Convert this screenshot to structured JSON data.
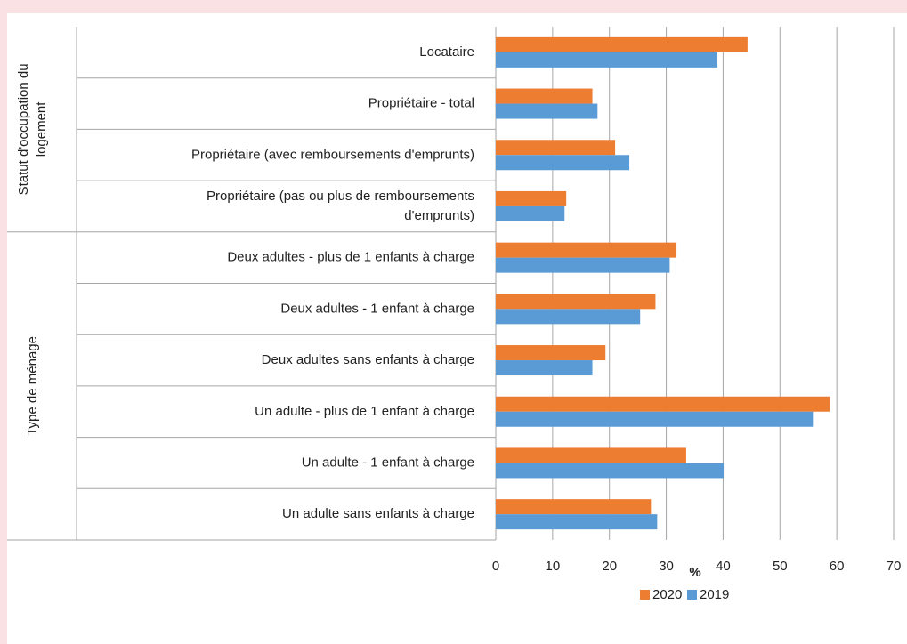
{
  "chart_data": {
    "type": "bar",
    "orientation": "horizontal",
    "groups": [
      {
        "label": "Statut d'occupation du\nlogement",
        "size": 4
      },
      {
        "label": "Type de ménage",
        "size": 6
      }
    ],
    "categories": [
      "Locataire",
      "Propriétaire - total",
      "Propriétaire (avec remboursements d'emprunts)",
      "Propriétaire (pas ou plus de remboursements\nd'emprunts)",
      "Deux adultes - plus de 1 enfants à charge",
      "Deux adultes - 1 enfant à charge",
      "Deux adultes sans enfants à charge",
      "Un adulte - plus de 1 enfant à charge",
      "Un adulte - 1 enfant à charge",
      "Un adulte sans enfants à charge"
    ],
    "series": [
      {
        "name": "2020",
        "color": "#ed7d31",
        "values": [
          44.3,
          17,
          21,
          12.4,
          31.8,
          28.1,
          19.3,
          58.8,
          33.5,
          27.3
        ]
      },
      {
        "name": "2019",
        "color": "#5b9bd5",
        "values": [
          39,
          17.9,
          23.5,
          12.1,
          30.6,
          25.4,
          17,
          55.8,
          40.1,
          28.4
        ]
      }
    ],
    "x_label": "%",
    "xlim": [
      0,
      70
    ],
    "xticks": [
      0,
      10,
      20,
      30,
      40,
      50,
      60,
      70
    ],
    "grid": true,
    "legend": "bottom"
  }
}
